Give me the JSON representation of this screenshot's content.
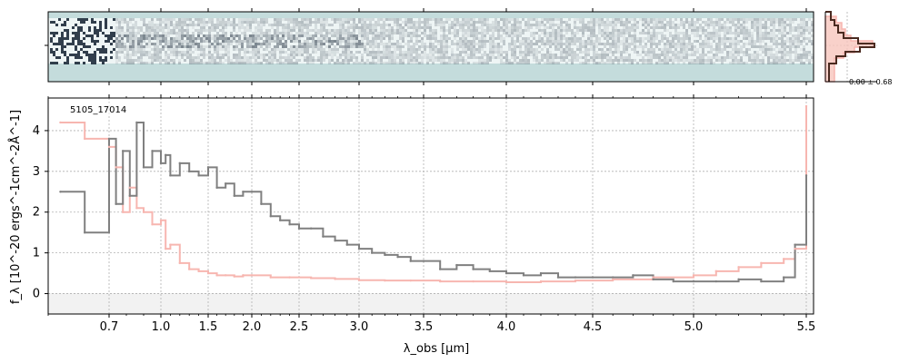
{
  "figure": {
    "spectrum_label": "5105_17014",
    "xlabel": "λ_obs [μm]",
    "ylabel": "f_λ [10^-20 ergs^-1cm^-2Å^-1]",
    "side_panel_label": "0.00 ± 0.68"
  },
  "colors": {
    "data_line": "#808080",
    "model_line": "#f7b6b0",
    "model_overlap": "#c77f7a",
    "twod_background": "#c4dcdc",
    "profile_data": "#4a2a20",
    "profile_model": "#f7c5bd",
    "grid": "#b0b0b0"
  },
  "chart_data": [
    {
      "type": "line",
      "panel": "1d-spectrum",
      "xlabel": "λ_obs [μm]",
      "ylabel": "f_λ [10^-20 ergs^-1cm^-2Å^-1]",
      "x_scale": "wavelength (nonlinear, stretched at blue end)",
      "xlim": [
        0.6,
        5.52
      ],
      "ylim": [
        -0.5,
        4.8
      ],
      "x_ticks": [
        0.7,
        1.0,
        1.5,
        2.0,
        2.5,
        3.0,
        3.5,
        4.0,
        4.5,
        5.0,
        5.5
      ],
      "x_tick_labels": [
        "0.7",
        "1.0",
        "1.5",
        "2.0",
        "2.5",
        "3.0",
        "3.5",
        "4.0",
        "4.5",
        "5.0",
        "5.5"
      ],
      "y_ticks": [
        0,
        1,
        2,
        3,
        4
      ],
      "grid": true,
      "annotation": "5105_17014",
      "series": [
        {
          "x": [
            0.62,
            0.66,
            0.7,
            0.74,
            0.78,
            0.82,
            0.86,
            0.9,
            0.95,
            1.0,
            1.05,
            1.1,
            1.2,
            1.3,
            1.4,
            1.5,
            1.6,
            1.7,
            1.8,
            1.9,
            2.0,
            2.1,
            2.2,
            2.3,
            2.4,
            2.5,
            2.6,
            2.7,
            2.8,
            2.9,
            3.0,
            3.1,
            3.2,
            3.3,
            3.4,
            3.5,
            3.6,
            3.7,
            3.8,
            3.9,
            4.0,
            4.1,
            4.2,
            4.3,
            4.4,
            4.5,
            4.6,
            4.7,
            4.8,
            4.9,
            5.0,
            5.1,
            5.2,
            5.3,
            5.4,
            5.45,
            5.5
          ],
          "values": [
            2.5,
            1.5,
            3.8,
            2.2,
            3.5,
            2.4,
            4.2,
            3.1,
            3.5,
            3.2,
            3.4,
            2.9,
            3.2,
            3.0,
            2.9,
            3.1,
            2.6,
            2.7,
            2.4,
            2.5,
            2.5,
            2.2,
            1.9,
            1.8,
            1.7,
            1.6,
            1.6,
            1.4,
            1.3,
            1.2,
            1.1,
            1.0,
            0.95,
            0.9,
            0.8,
            0.8,
            0.6,
            0.7,
            0.6,
            0.55,
            0.5,
            0.45,
            0.5,
            0.4,
            0.4,
            0.4,
            0.4,
            0.45,
            0.35,
            0.3,
            0.3,
            0.3,
            0.35,
            0.3,
            0.4,
            1.2,
            2.9
          ]
        },
        {
          "x": [
            0.62,
            0.66,
            0.7,
            0.74,
            0.78,
            0.82,
            0.86,
            0.9,
            0.95,
            1.0,
            1.05,
            1.1,
            1.2,
            1.3,
            1.4,
            1.5,
            1.6,
            1.7,
            1.8,
            1.9,
            2.0,
            2.2,
            2.4,
            2.6,
            2.8,
            3.0,
            3.2,
            3.4,
            3.6,
            3.8,
            4.0,
            4.2,
            4.4,
            4.6,
            4.8,
            5.0,
            5.1,
            5.2,
            5.3,
            5.4,
            5.45,
            5.5
          ],
          "values": [
            4.2,
            3.8,
            3.6,
            3.1,
            2.0,
            2.6,
            2.1,
            2.0,
            1.7,
            1.8,
            1.1,
            1.2,
            0.75,
            0.6,
            0.55,
            0.5,
            0.45,
            0.45,
            0.42,
            0.45,
            0.45,
            0.4,
            0.4,
            0.38,
            0.36,
            0.33,
            0.32,
            0.32,
            0.3,
            0.3,
            0.28,
            0.3,
            0.32,
            0.35,
            0.4,
            0.45,
            0.55,
            0.65,
            0.75,
            0.85,
            1.1,
            4.6
          ]
        }
      ]
    },
    {
      "type": "heatmap",
      "panel": "2d-spectrum",
      "description_values": "two-dimensional spectral image sharing the wavelength axis"
    },
    {
      "type": "line",
      "panel": "spatial-profile",
      "annotation": "0.00 ± 0.68"
    }
  ]
}
